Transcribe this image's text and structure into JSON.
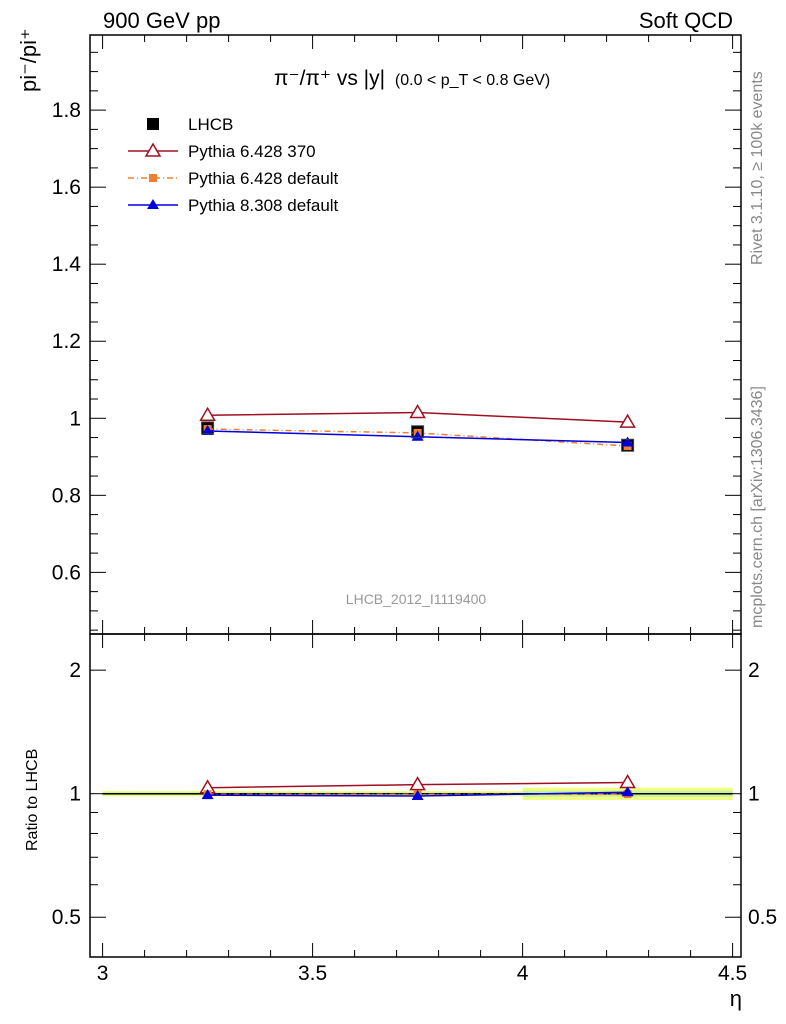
{
  "header": {
    "left": "900 GeV pp",
    "right": "Soft QCD"
  },
  "side_labels": {
    "rivet": "Rivet 3.1.10, ≥ 100k events",
    "mcplots": "mcplots.cern.ch [arXiv:1306.3436]"
  },
  "plot_title": {
    "main": "π⁻/π⁺ vs |y|",
    "sub": "(0.0 < p_T < 0.8 GeV)"
  },
  "analysis_id": "LHCB_2012_I1119400",
  "ylabel_main": "pi⁻/pi⁺",
  "ylabel_ratio": "Ratio to LHCB",
  "xlabel": "η",
  "legend": [
    {
      "label": "LHCB",
      "marker": "square",
      "color": "#000000",
      "line": "none"
    },
    {
      "label": "Pythia 6.428 370",
      "marker": "triangle-open",
      "color": "#a01020",
      "line": "solid"
    },
    {
      "label": "Pythia 6.428 default",
      "marker": "square-small",
      "color": "#f08030",
      "line": "dashdot"
    },
    {
      "label": "Pythia 8.308 default",
      "marker": "triangle",
      "color": "#0000dd",
      "line": "solid"
    }
  ],
  "chart_data": {
    "type": "line",
    "x": [
      3.25,
      3.75,
      4.25
    ],
    "xlim": [
      2.97,
      4.52
    ],
    "x_ticks": [
      "3",
      "3.5",
      "4",
      "4.5"
    ],
    "main": {
      "ylim": [
        0.44,
        1.995
      ],
      "y_ticks": [
        "0.6",
        "0.8",
        "1",
        "1.2",
        "1.4",
        "1.6",
        "1.8"
      ],
      "series": [
        {
          "name": "LHCB",
          "values": [
            0.975,
            0.965,
            0.93
          ]
        },
        {
          "name": "Pythia 6.428 370",
          "values": [
            1.008,
            1.015,
            0.99
          ]
        },
        {
          "name": "Pythia 6.428 default",
          "values": [
            0.972,
            0.962,
            0.928
          ]
        },
        {
          "name": "Pythia 8.308 default",
          "values": [
            0.967,
            0.952,
            0.937
          ]
        }
      ]
    },
    "ratio": {
      "ylim": [
        0.4,
        2.45
      ],
      "log_scale": true,
      "y_ticks": [
        "0.5",
        "1",
        "2"
      ],
      "band_lower": [
        0.985,
        0.985,
        0.965
      ],
      "band_upper": [
        1.015,
        1.015,
        1.035
      ],
      "series": [
        {
          "name": "Pythia 6.428 370",
          "values": [
            1.034,
            1.052,
            1.065
          ]
        },
        {
          "name": "Pythia 6.428 default",
          "values": [
            0.997,
            0.997,
            0.998
          ]
        },
        {
          "name": "Pythia 8.308 default",
          "values": [
            0.992,
            0.987,
            1.008
          ]
        }
      ]
    }
  }
}
